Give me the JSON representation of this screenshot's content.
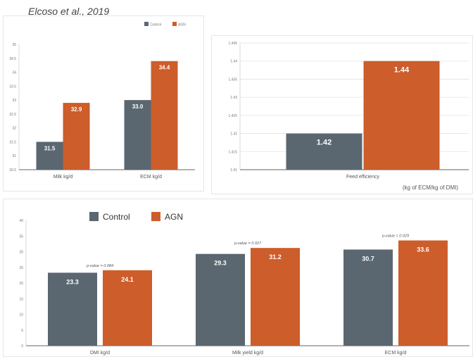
{
  "citation": "Elcoso et al., 2019",
  "colors": {
    "control": "#5a6770",
    "agn": "#cd5d2a"
  },
  "chart_data": [
    {
      "type": "bar",
      "categories": [
        "Milk kg/d",
        "ECM kg/d"
      ],
      "series": [
        {
          "name": "Control",
          "values": [
            31.5,
            33.0
          ]
        },
        {
          "name": "AGN",
          "values": [
            32.9,
            34.4
          ]
        }
      ],
      "value_labels": [
        [
          "31.5",
          "33.0"
        ],
        [
          "32.9",
          "34.4"
        ]
      ],
      "yticks": [
        "30.5",
        "31",
        "31.5",
        "32",
        "32.5",
        "33",
        "33.5",
        "34",
        "34.5",
        "35"
      ],
      "ylim": [
        30.5,
        35
      ],
      "legend": "top-right",
      "grid": false
    },
    {
      "type": "bar",
      "categories": [
        "Feed efficiency"
      ],
      "xlabel": "(kg of ECM/kg of DMI)",
      "series": [
        {
          "name": "Control",
          "values": [
            1.42
          ]
        },
        {
          "name": "AGN",
          "values": [
            1.44
          ]
        }
      ],
      "value_labels": [
        [
          "1.42"
        ],
        [
          "1.44"
        ]
      ],
      "yticks": [
        "1.41",
        "1.415",
        "1.42",
        "1.425",
        "1.43",
        "1.435",
        "1.44",
        "1.445"
      ],
      "ylim": [
        1.41,
        1.445
      ],
      "grid": true
    },
    {
      "type": "bar",
      "categories": [
        "DMI kg/d",
        "Milk yield kg/d",
        "ECM kg/d"
      ],
      "series": [
        {
          "name": "Control",
          "values": [
            23.3,
            29.3,
            30.7
          ]
        },
        {
          "name": "AGN",
          "values": [
            24.1,
            31.2,
            33.6
          ]
        }
      ],
      "value_labels": [
        [
          "23.3",
          "29.3",
          "30.7"
        ],
        [
          "24.1",
          "31.2",
          "33.6"
        ]
      ],
      "pvalues": [
        "p-value = 0.084",
        "p-value = 0.027",
        "p-value = 0.029"
      ],
      "yticks": [
        "0",
        "5",
        "10",
        "15",
        "20",
        "25",
        "30",
        "35",
        "40"
      ],
      "ylim": [
        0,
        40
      ],
      "legend": "top-left",
      "grid": false
    }
  ]
}
